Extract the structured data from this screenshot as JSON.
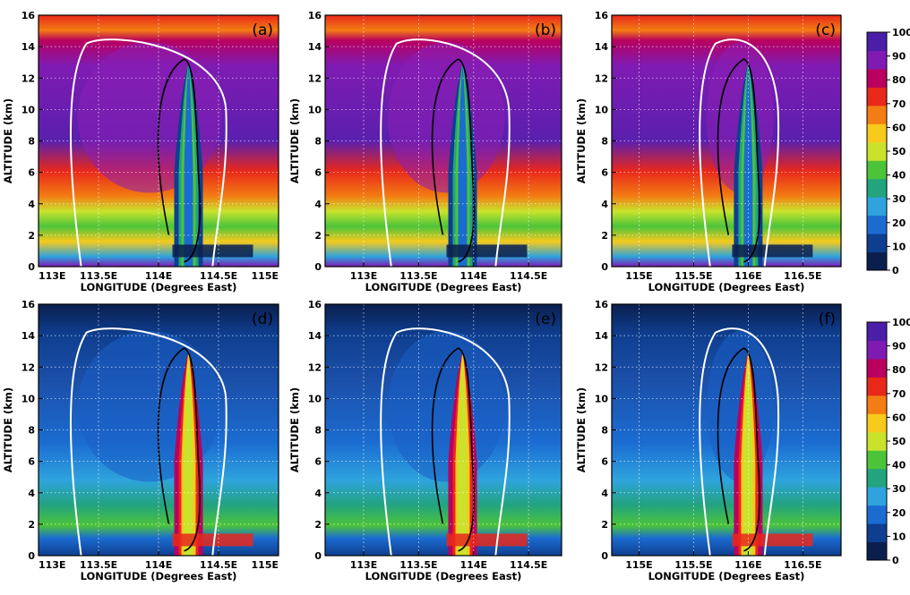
{
  "chart_data": [
    {
      "type": "heatmap",
      "label": "(a)",
      "xlabel": "LONGITUDE (Degrees East)",
      "ylabel": "ALTITUDE (km)",
      "xticks": [
        "113E",
        "113.5E",
        "114E",
        "114.5E",
        "115E"
      ],
      "yticks": [
        "0",
        "2",
        "4",
        "6",
        "8",
        "10",
        "12",
        "14",
        "16"
      ],
      "xlim": [
        113,
        115
      ],
      "ylim": [
        0,
        16
      ],
      "core_x": 114.25,
      "cloud_x": [
        113.4,
        114.45
      ],
      "grid": true,
      "colorbar": "top"
    },
    {
      "type": "heatmap",
      "label": "(b)",
      "xlabel": "LONGITUDE (Degrees East)",
      "ylabel": "ALTITUDE (km)",
      "xticks": [
        "113E",
        "113.5E",
        "114E",
        "114.5E"
      ],
      "yticks": [
        "0",
        "2",
        "4",
        "6",
        "8",
        "10",
        "12",
        "14",
        "16"
      ],
      "xlim": [
        112.65,
        114.8
      ],
      "ylim": [
        0,
        16
      ],
      "core_x": 113.9,
      "cloud_x": [
        113.3,
        114.2
      ],
      "grid": true,
      "colorbar": "top"
    },
    {
      "type": "heatmap",
      "label": "(c)",
      "xlabel": "LONGITUDE (Degrees East)",
      "ylabel": "ALTITUDE (km)",
      "xticks": [
        "115E",
        "115.5E",
        "116E",
        "116.5E"
      ],
      "yticks": [
        "0",
        "2",
        "4",
        "6",
        "8",
        "10",
        "12",
        "14",
        "16"
      ],
      "xlim": [
        114.75,
        116.85
      ],
      "ylim": [
        0,
        16
      ],
      "core_x": 116.0,
      "cloud_x": [
        115.7,
        116.15
      ],
      "grid": true,
      "colorbar": "top"
    },
    {
      "type": "heatmap",
      "label": "(d)",
      "xlabel": "LONGITUDE (Degrees East)",
      "ylabel": "ALTITUDE (km)",
      "xticks": [
        "113E",
        "113.5E",
        "114E",
        "114.5E",
        "115E"
      ],
      "yticks": [
        "0",
        "2",
        "4",
        "6",
        "8",
        "10",
        "12",
        "14",
        "16"
      ],
      "xlim": [
        113,
        115
      ],
      "ylim": [
        0,
        16
      ],
      "core_x": 114.25,
      "cloud_x": [
        113.4,
        114.45
      ],
      "grid": true,
      "colorbar": "bottom"
    },
    {
      "type": "heatmap",
      "label": "(e)",
      "xlabel": "LONGITUDE (Degrees East)",
      "ylabel": "ALTITUDE (km)",
      "xticks": [
        "113E",
        "113.5E",
        "114E",
        "114.5E"
      ],
      "yticks": [
        "0",
        "2",
        "4",
        "6",
        "8",
        "10",
        "12",
        "14",
        "16"
      ],
      "xlim": [
        112.65,
        114.8
      ],
      "ylim": [
        0,
        16
      ],
      "core_x": 113.9,
      "cloud_x": [
        113.3,
        114.2
      ],
      "grid": true,
      "colorbar": "bottom"
    },
    {
      "type": "heatmap",
      "label": "(f)",
      "xlabel": "LONGITUDE (Degrees East)",
      "ylabel": "ALTITUDE (km)",
      "xticks": [
        "115E",
        "115.5E",
        "116E",
        "116.5E"
      ],
      "yticks": [
        "0",
        "2",
        "4",
        "6",
        "8",
        "10",
        "12",
        "14",
        "16"
      ],
      "xlim": [
        114.75,
        116.85
      ],
      "ylim": [
        0,
        16
      ],
      "core_x": 116.0,
      "cloud_x": [
        115.7,
        116.15
      ],
      "grid": true,
      "colorbar": "bottom"
    }
  ],
  "colorbar_ticks": [
    "0",
    "10",
    "20",
    "30",
    "40",
    "50",
    "60",
    "70",
    "80",
    "90",
    "100"
  ],
  "colorbar_colors": [
    "#0b1f4e",
    "#0e3e8f",
    "#1b6cd1",
    "#2ea3dd",
    "#23a37e",
    "#4cc43a",
    "#c9e32c",
    "#f7ca1c",
    "#f37d13",
    "#e8281b",
    "#b9005e",
    "#7f1bb2",
    "#4a1ea7"
  ]
}
